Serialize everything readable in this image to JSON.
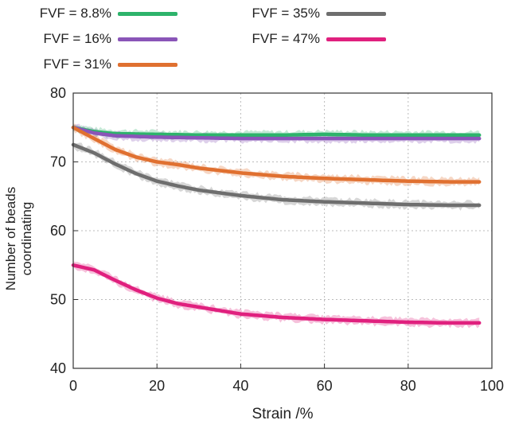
{
  "chart_data": {
    "type": "line",
    "xlabel": "Strain /%",
    "ylabel": "Number of beads coordinating",
    "xlim": [
      0,
      100
    ],
    "ylim": [
      40,
      80
    ],
    "xticks": [
      0,
      20,
      40,
      60,
      80,
      100
    ],
    "yticks": [
      40,
      50,
      60,
      70,
      80
    ],
    "grid": true,
    "legend_position": "top",
    "series": [
      {
        "name": "FVF = 8.8%",
        "color": "#2db36b",
        "x": [
          0,
          5,
          10,
          20,
          30,
          40,
          50,
          60,
          70,
          80,
          90,
          97
        ],
        "y": [
          75.0,
          74.4,
          74.1,
          74.0,
          73.9,
          73.9,
          73.9,
          74.0,
          73.9,
          73.9,
          73.9,
          73.9
        ]
      },
      {
        "name": "FVF = 16%",
        "color": "#8a55b8",
        "x": [
          0,
          5,
          10,
          20,
          30,
          40,
          50,
          60,
          70,
          80,
          90,
          97
        ],
        "y": [
          75.0,
          74.2,
          73.8,
          73.6,
          73.5,
          73.4,
          73.4,
          73.4,
          73.4,
          73.4,
          73.4,
          73.4
        ]
      },
      {
        "name": "FVF = 31%",
        "color": "#e07030",
        "x": [
          0,
          5,
          10,
          15,
          20,
          25,
          30,
          40,
          50,
          60,
          70,
          80,
          90,
          97
        ],
        "y": [
          75.0,
          73.4,
          71.8,
          70.7,
          70.0,
          69.6,
          69.1,
          68.4,
          67.9,
          67.6,
          67.4,
          67.2,
          67.1,
          67.1
        ]
      },
      {
        "name": "FVF = 35%",
        "color": "#6e6e6e",
        "x": [
          0,
          5,
          10,
          15,
          20,
          25,
          30,
          40,
          50,
          60,
          70,
          80,
          90,
          97
        ],
        "y": [
          72.5,
          71.3,
          69.7,
          68.3,
          67.2,
          66.5,
          65.9,
          65.1,
          64.5,
          64.2,
          64.0,
          63.8,
          63.7,
          63.7
        ]
      },
      {
        "name": "FVF = 47%",
        "color": "#e0207e",
        "x": [
          0,
          5,
          10,
          15,
          20,
          25,
          30,
          40,
          50,
          60,
          70,
          80,
          90,
          97
        ],
        "y": [
          55.0,
          54.3,
          52.8,
          51.4,
          50.2,
          49.4,
          48.9,
          47.9,
          47.4,
          47.1,
          46.9,
          46.7,
          46.6,
          46.6
        ]
      }
    ]
  },
  "legend": [
    {
      "label": "FVF = 8.8%",
      "color": "#2db36b"
    },
    {
      "label": "FVF = 16%",
      "color": "#8a55b8"
    },
    {
      "label": "FVF = 31%",
      "color": "#e07030"
    },
    {
      "label": "FVF = 35%",
      "color": "#6e6e6e"
    },
    {
      "label": "FVF = 47%",
      "color": "#e0207e"
    }
  ]
}
